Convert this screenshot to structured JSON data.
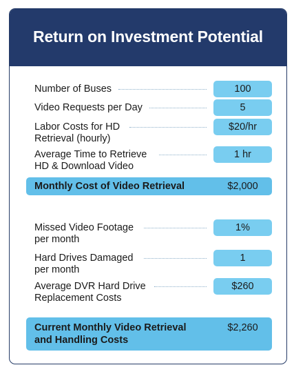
{
  "title": "Return on Investment Potential",
  "section1": {
    "rows": [
      {
        "label": [
          "Number of Buses"
        ],
        "value": "100"
      },
      {
        "label": [
          "Video Requests per Day"
        ],
        "value": "5"
      },
      {
        "label": [
          "Labor Costs for HD",
          "Retrieval (hourly)"
        ],
        "value": "$20/hr"
      },
      {
        "label": [
          "Average Time to Retrieve",
          "HD & Download Video"
        ],
        "value": "1 hr"
      }
    ],
    "total": {
      "label": [
        "Monthly Cost of Video Retrieval"
      ],
      "value": "$2,000"
    }
  },
  "section2": {
    "rows": [
      {
        "label": [
          "Missed Video Footage",
          "per month"
        ],
        "value": "1%"
      },
      {
        "label": [
          "Hard Drives Damaged",
          "per month"
        ],
        "value": "1"
      },
      {
        "label": [
          "Average DVR Hard Drive",
          "Replacement Costs"
        ],
        "value": "$260"
      }
    ],
    "total": {
      "label": [
        "Current Monthly Video Retrieval",
        "and Handling Costs"
      ],
      "value": "$2,260"
    }
  },
  "colors": {
    "header_bg": "#233a6b",
    "value_box": "#79cdf0",
    "total_box": "#62bfe9",
    "leader_dots": "#8aaec8"
  }
}
